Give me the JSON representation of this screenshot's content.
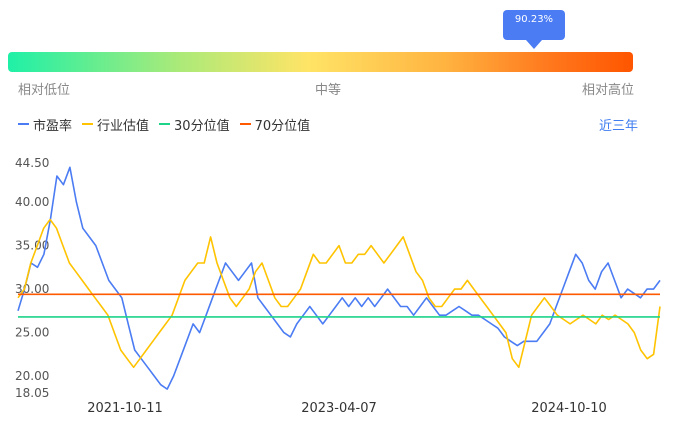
{
  "indicator": {
    "percent_label": "90.23%",
    "value": 0.9023,
    "low_label": "相对低位",
    "mid_label": "中等",
    "high_label": "相对高位"
  },
  "legend": {
    "items": [
      {
        "name": "市盈率",
        "color": "#4b7cf3"
      },
      {
        "name": "行业估值",
        "color": "#ffc300"
      },
      {
        "name": "30分位值",
        "color": "#1ed38a"
      },
      {
        "name": "70分位值",
        "color": "#ff5a00"
      }
    ]
  },
  "range_label": "近三年",
  "chart_data": {
    "type": "line",
    "y_ticks": [
      "44.50",
      "40.00",
      "35.00",
      "30.00",
      "25.00",
      "20.00",
      "18.05"
    ],
    "ylim": [
      18.05,
      44.5
    ],
    "x_ticks": [
      "2021-10-11",
      "2023-04-07",
      "2024-10-10"
    ],
    "series": [
      {
        "name": "市盈率",
        "color": "#4b7cf3",
        "values": [
          27.5,
          30,
          33,
          32.5,
          34,
          38,
          43,
          42,
          44,
          40,
          37,
          36,
          35,
          33,
          31,
          30,
          29,
          26,
          23,
          22,
          21,
          20,
          19,
          18.5,
          20,
          22,
          24,
          26,
          25,
          27,
          29,
          31,
          33,
          32,
          31,
          32,
          33,
          29,
          28,
          27,
          26,
          25,
          24.5,
          26,
          27,
          28,
          27,
          26,
          27,
          28,
          29,
          28,
          29,
          28,
          29,
          28,
          29,
          30,
          29,
          28,
          28,
          27,
          28,
          29,
          28,
          27,
          27,
          27.5,
          28,
          27.5,
          27,
          27,
          26.5,
          26,
          25.5,
          24.5,
          24,
          23.5,
          24,
          24,
          24,
          25,
          26,
          28,
          30,
          32,
          34,
          33,
          31,
          30,
          32,
          33,
          31,
          29,
          30,
          29.5,
          29,
          30,
          30,
          31
        ]
      },
      {
        "name": "行业估值",
        "color": "#ffc300",
        "values": [
          29,
          30,
          33,
          35,
          37,
          38,
          37,
          35,
          33,
          32,
          31,
          30,
          29,
          28,
          27,
          25,
          23,
          22,
          21,
          22,
          23,
          24,
          25,
          26,
          27,
          29,
          31,
          32,
          33,
          33,
          36,
          33,
          31,
          29,
          28,
          29,
          30,
          32,
          33,
          31,
          29,
          28,
          28,
          29,
          30,
          32,
          34,
          33,
          33,
          34,
          35,
          33,
          33,
          34,
          34,
          35,
          34,
          33,
          34,
          35,
          36,
          34,
          32,
          31,
          29,
          28,
          28,
          29,
          30,
          30,
          31,
          30,
          29,
          28,
          27,
          26,
          25,
          22,
          21,
          24,
          27,
          28,
          29,
          28,
          27,
          26.5,
          26,
          26.5,
          27,
          26.5,
          26,
          27,
          26.5,
          27,
          26.5,
          26,
          25,
          23,
          22,
          22.5,
          28
        ]
      }
    ],
    "reference_lines": [
      {
        "name": "30分位值",
        "value": 26.8,
        "color": "#1ed38a"
      },
      {
        "name": "70分位值",
        "value": 29.4,
        "color": "#ff5a00"
      }
    ]
  }
}
